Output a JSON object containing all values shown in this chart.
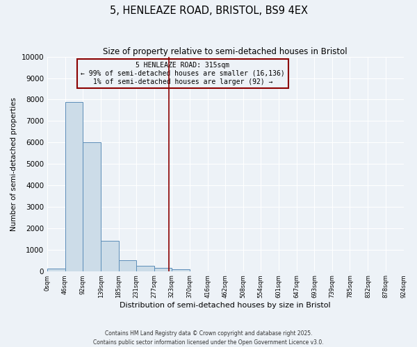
{
  "title": "5, HENLEAZE ROAD, BRISTOL, BS9 4EX",
  "subtitle": "Size of property relative to semi-detached houses in Bristol",
  "xlabel": "Distribution of semi-detached houses by size in Bristol",
  "ylabel": "Number of semi-detached properties",
  "bar_color": "#ccdce8",
  "bar_edge_color": "#5b8db8",
  "vline_color": "#8b0000",
  "vline_x": 315,
  "annotation_text": "5 HENLEAZE ROAD: 315sqm\n← 99% of semi-detached houses are smaller (16,136)\n1% of semi-detached houses are larger (92) →",
  "annotation_box_color": "#8b0000",
  "bin_edges": [
    0,
    46,
    92,
    139,
    185,
    231,
    277,
    323,
    370,
    416,
    462,
    508,
    554,
    601,
    647,
    693,
    739,
    785,
    832,
    878,
    924
  ],
  "bar_heights": [
    100,
    7900,
    6000,
    1400,
    500,
    250,
    150,
    80,
    0,
    0,
    0,
    0,
    0,
    0,
    0,
    0,
    0,
    0,
    0,
    0
  ],
  "ylim": [
    0,
    10000
  ],
  "yticks": [
    0,
    1000,
    2000,
    3000,
    4000,
    5000,
    6000,
    7000,
    8000,
    9000,
    10000
  ],
  "background_color": "#edf2f7",
  "grid_color": "#ffffff",
  "footer_line1": "Contains HM Land Registry data © Crown copyright and database right 2025.",
  "footer_line2": "Contains public sector information licensed under the Open Government Licence v3.0."
}
